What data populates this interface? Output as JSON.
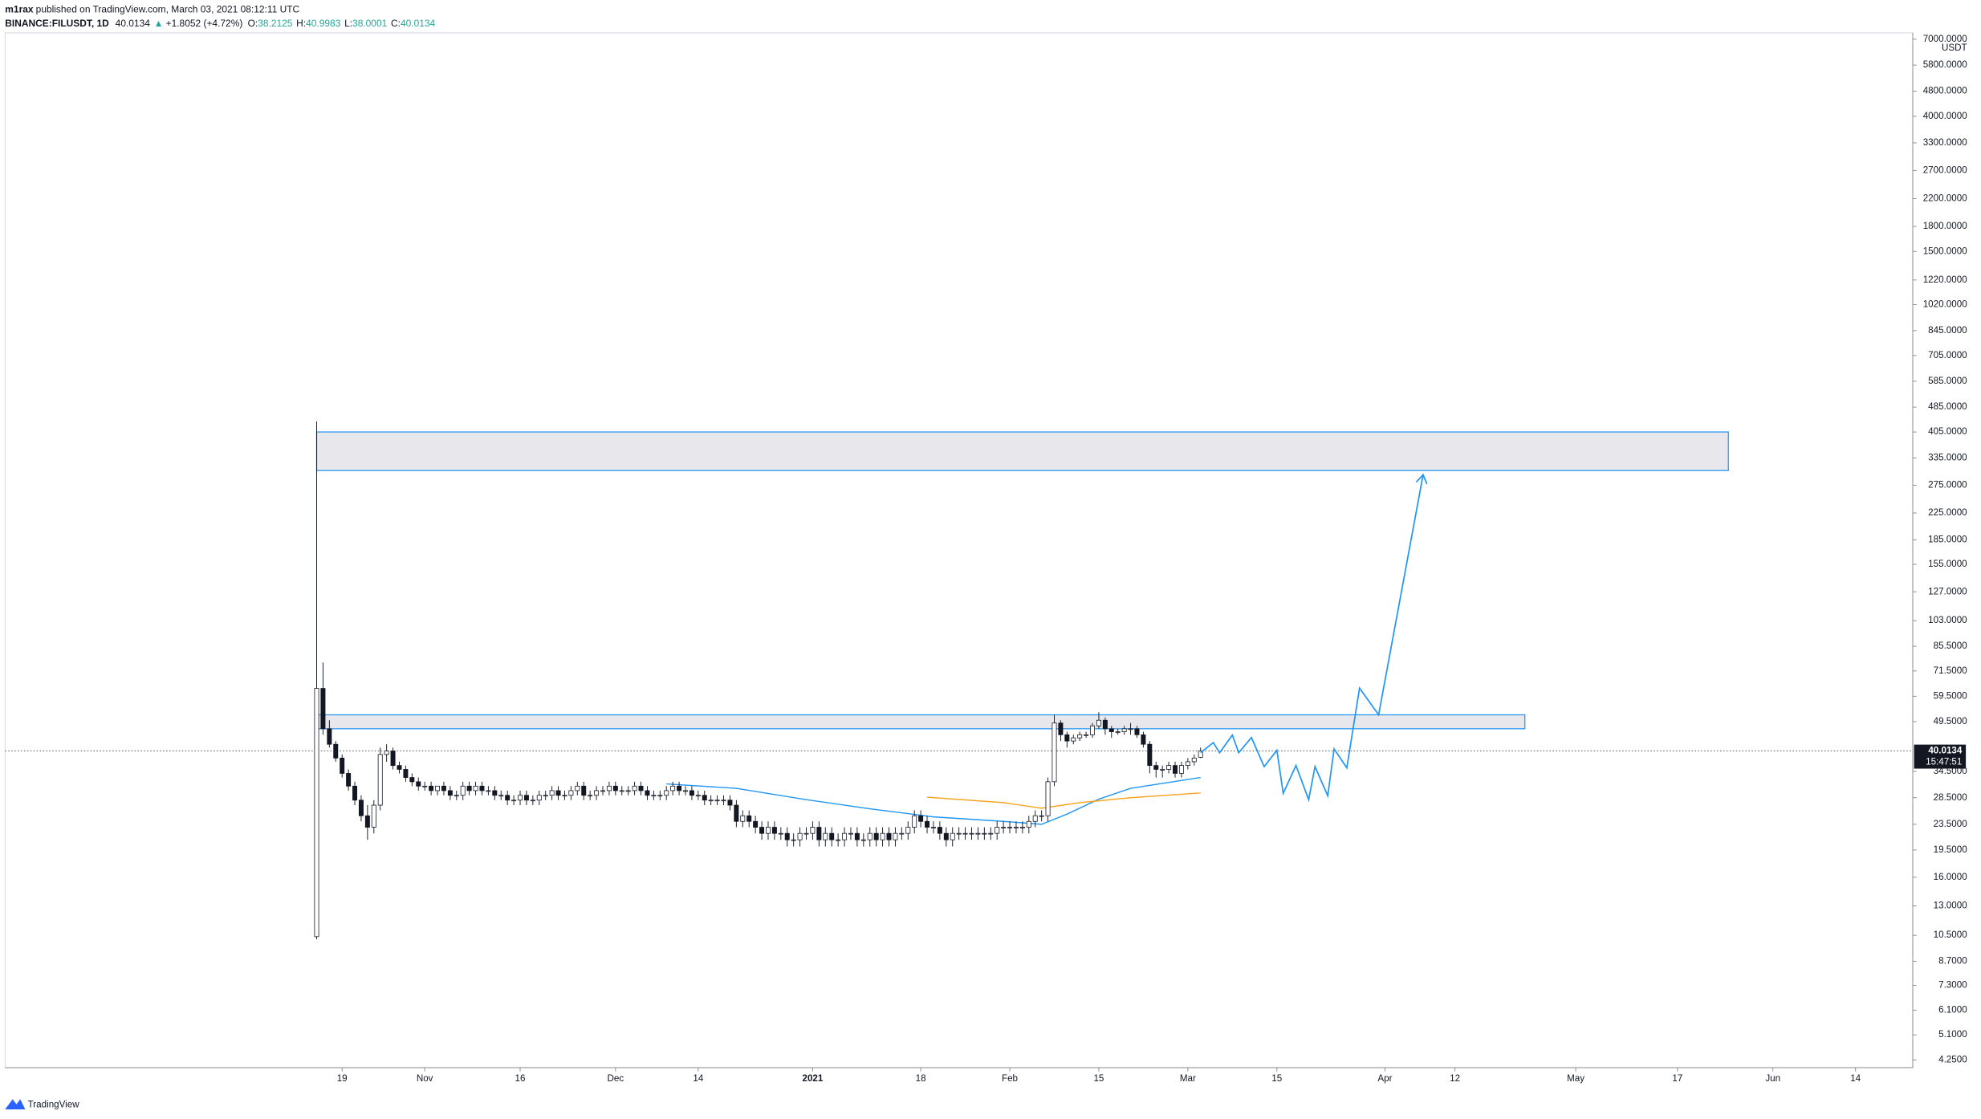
{
  "header": {
    "author": "m1rax",
    "published": "published on TradingView.com, March 03, 2021 08:12:11 UTC",
    "symbol": "BINANCE:FILUSDT, 1D",
    "price": "40.0134",
    "arrow": "▲",
    "change": "+1.8052 (+4.72%)",
    "ohlc": [
      {
        "label": "O:",
        "value": "38.2125"
      },
      {
        "label": "H:",
        "value": "40.9983"
      },
      {
        "label": "L:",
        "value": "38.0001"
      },
      {
        "label": "C:",
        "value": "40.0134"
      }
    ]
  },
  "chart_data": {
    "type": "candlestick",
    "log_scale": true,
    "grid": false,
    "currency": "USDT",
    "up_color": "#ffffff",
    "down_color": "#131722",
    "wick_color": "#131722",
    "xlim": [
      "2020-08-27",
      "2021-06-23"
    ],
    "xticks": [
      {
        "value": "2020-10-19",
        "label": "19"
      },
      {
        "value": "2020-11-01",
        "label": "Nov"
      },
      {
        "value": "2020-11-16",
        "label": "16"
      },
      {
        "value": "2020-12-01",
        "label": "Dec"
      },
      {
        "value": "2020-12-14",
        "label": "14"
      },
      {
        "value": "2021-01-01",
        "label": "2021"
      },
      {
        "value": "2021-01-18",
        "label": "18"
      },
      {
        "value": "2021-02-01",
        "label": "Feb"
      },
      {
        "value": "2021-02-15",
        "label": "15"
      },
      {
        "value": "2021-03-01",
        "label": "Mar"
      },
      {
        "value": "2021-03-15",
        "label": "15"
      },
      {
        "value": "2021-04-01",
        "label": "Apr"
      },
      {
        "value": "2021-04-12",
        "label": "12"
      },
      {
        "value": "2021-05-01",
        "label": "May"
      },
      {
        "value": "2021-05-17",
        "label": "17"
      },
      {
        "value": "2021-06-01",
        "label": "Jun"
      },
      {
        "value": "2021-06-14",
        "label": "14"
      }
    ],
    "ylim": [
      4.02,
      7330
    ],
    "yticks": [
      {
        "value": 7000,
        "label": "7000.0000"
      },
      {
        "value": 5800,
        "label": "5800.0000"
      },
      {
        "value": 4800,
        "label": "4800.0000"
      },
      {
        "value": 4000,
        "label": "4000.0000"
      },
      {
        "value": 3300,
        "label": "3300.0000"
      },
      {
        "value": 2700,
        "label": "2700.0000"
      },
      {
        "value": 2200,
        "label": "2200.0000"
      },
      {
        "value": 1800,
        "label": "1800.0000"
      },
      {
        "value": 1500,
        "label": "1500.0000"
      },
      {
        "value": 1220,
        "label": "1220.0000"
      },
      {
        "value": 1020,
        "label": "1020.0000"
      },
      {
        "value": 845,
        "label": "845.0000"
      },
      {
        "value": 705,
        "label": "705.0000"
      },
      {
        "value": 585,
        "label": "585.0000"
      },
      {
        "value": 485,
        "label": "485.0000"
      },
      {
        "value": 405,
        "label": "405.0000"
      },
      {
        "value": 335,
        "label": "335.0000"
      },
      {
        "value": 275,
        "label": "275.0000"
      },
      {
        "value": 225,
        "label": "225.0000"
      },
      {
        "value": 185,
        "label": "185.0000"
      },
      {
        "value": 155,
        "label": "155.0000"
      },
      {
        "value": 127,
        "label": "127.0000"
      },
      {
        "value": 103,
        "label": "103.0000"
      },
      {
        "value": 85.5,
        "label": "85.5000"
      },
      {
        "value": 71.5,
        "label": "71.5000"
      },
      {
        "value": 59.5,
        "label": "59.5000"
      },
      {
        "value": 49.5,
        "label": "49.5000"
      },
      {
        "value": 34.5,
        "label": "34.5000"
      },
      {
        "value": 28.5,
        "label": "28.5000"
      },
      {
        "value": 23.5,
        "label": "23.5000"
      },
      {
        "value": 19.5,
        "label": "19.5000"
      },
      {
        "value": 16,
        "label": "16.0000"
      },
      {
        "value": 13,
        "label": "13.0000"
      },
      {
        "value": 10.5,
        "label": "10.5000"
      },
      {
        "value": 8.7,
        "label": "8.7000"
      },
      {
        "value": 7.3,
        "label": "7.3000"
      },
      {
        "value": 6.1,
        "label": "6.1000"
      },
      {
        "value": 5.1,
        "label": "5.1000"
      },
      {
        "value": 4.25,
        "label": "4.2500"
      }
    ],
    "last_price": {
      "value": 40.0134,
      "label": "40.0134",
      "countdown": "15:47:51",
      "color": "#131722"
    },
    "x": [
      "2020-10-15",
      "2020-10-16",
      "2020-10-17",
      "2020-10-18",
      "2020-10-19",
      "2020-10-20",
      "2020-10-21",
      "2020-10-22",
      "2020-10-23",
      "2020-10-24",
      "2020-10-25",
      "2020-10-26",
      "2020-10-27",
      "2020-10-28",
      "2020-10-29",
      "2020-10-30",
      "2020-10-31",
      "2020-11-01",
      "2020-11-02",
      "2020-11-03",
      "2020-11-04",
      "2020-11-05",
      "2020-11-06",
      "2020-11-07",
      "2020-11-08",
      "2020-11-09",
      "2020-11-10",
      "2020-11-11",
      "2020-11-12",
      "2020-11-13",
      "2020-11-14",
      "2020-11-15",
      "2020-11-16",
      "2020-11-17",
      "2020-11-18",
      "2020-11-19",
      "2020-11-20",
      "2020-11-21",
      "2020-11-22",
      "2020-11-23",
      "2020-11-24",
      "2020-11-25",
      "2020-11-26",
      "2020-11-27",
      "2020-11-28",
      "2020-11-29",
      "2020-11-30",
      "2020-12-01",
      "2020-12-02",
      "2020-12-03",
      "2020-12-04",
      "2020-12-05",
      "2020-12-06",
      "2020-12-07",
      "2020-12-08",
      "2020-12-09",
      "2020-12-10",
      "2020-12-11",
      "2020-12-12",
      "2020-12-13",
      "2020-12-14",
      "2020-12-15",
      "2020-12-16",
      "2020-12-17",
      "2020-12-18",
      "2020-12-19",
      "2020-12-20",
      "2020-12-21",
      "2020-12-22",
      "2020-12-23",
      "2020-12-24",
      "2020-12-25",
      "2020-12-26",
      "2020-12-27",
      "2020-12-28",
      "2020-12-29",
      "2020-12-30",
      "2020-12-31",
      "2021-01-01",
      "2021-01-02",
      "2021-01-03",
      "2021-01-04",
      "2021-01-05",
      "2021-01-06",
      "2021-01-07",
      "2021-01-08",
      "2021-01-09",
      "2021-01-10",
      "2021-01-11",
      "2021-01-12",
      "2021-01-13",
      "2021-01-14",
      "2021-01-15",
      "2021-01-16",
      "2021-01-17",
      "2021-01-18",
      "2021-01-19",
      "2021-01-20",
      "2021-01-21",
      "2021-01-22",
      "2021-01-23",
      "2021-01-24",
      "2021-01-25",
      "2021-01-26",
      "2021-01-27",
      "2021-01-28",
      "2021-01-29",
      "2021-01-30",
      "2021-01-31",
      "2021-02-01",
      "2021-02-02",
      "2021-02-03",
      "2021-02-04",
      "2021-02-05",
      "2021-02-06",
      "2021-02-07",
      "2021-02-08",
      "2021-02-09",
      "2021-02-10",
      "2021-02-11",
      "2021-02-12",
      "2021-02-13",
      "2021-02-14",
      "2021-02-15",
      "2021-02-16",
      "2021-02-17",
      "2021-02-18",
      "2021-02-19",
      "2021-02-20",
      "2021-02-21",
      "2021-02-22",
      "2021-02-23",
      "2021-02-24",
      "2021-02-25",
      "2021-02-26",
      "2021-02-27",
      "2021-02-28",
      "2021-03-01",
      "2021-03-02",
      "2021-03-03"
    ],
    "open": [
      10.4,
      63,
      47,
      42,
      38,
      34,
      31,
      28,
      25,
      23,
      27,
      39,
      40,
      36,
      35,
      33,
      32,
      31,
      31,
      30,
      31,
      30,
      29,
      29,
      31,
      30,
      31,
      30,
      30,
      29,
      29,
      28,
      28,
      29,
      28,
      28,
      29,
      29,
      30,
      29,
      29,
      30,
      31,
      29,
      29,
      30,
      30,
      31,
      30,
      30,
      30,
      31,
      30,
      29,
      29,
      29,
      30,
      31,
      30,
      30,
      29,
      29,
      28,
      28,
      28,
      28,
      27,
      24,
      25,
      24,
      23,
      22,
      23,
      22,
      22,
      21,
      21,
      22,
      22,
      23,
      21,
      22,
      21,
      21,
      22,
      22,
      21,
      21,
      22,
      21,
      22,
      21,
      22,
      22,
      23,
      25,
      24,
      23,
      23,
      22,
      21,
      22,
      22,
      22,
      22,
      22,
      22,
      22,
      23,
      23,
      23,
      23,
      23,
      24,
      25,
      25,
      32,
      49,
      45,
      43,
      44,
      45,
      45,
      48,
      50,
      47,
      46,
      46,
      47,
      47,
      45,
      42,
      36,
      35,
      35,
      36,
      34,
      36,
      37,
      38.2125
    ],
    "high": [
      437,
      76,
      50,
      43,
      39,
      35,
      32,
      29,
      27,
      28,
      41,
      42,
      41,
      37,
      36,
      34,
      33,
      32,
      32,
      31,
      32,
      31,
      30,
      32,
      32,
      32,
      32,
      31,
      31,
      30,
      30,
      29,
      30,
      30,
      29,
      30,
      30,
      31,
      31,
      30,
      31,
      32,
      32,
      30,
      31,
      31,
      32,
      32,
      31,
      31,
      32,
      32,
      31,
      30,
      30,
      31,
      32,
      32,
      31,
      31,
      30,
      30,
      29,
      29,
      29,
      29,
      28,
      26,
      26,
      25,
      24,
      24,
      24,
      23,
      23,
      22,
      23,
      23,
      24,
      24,
      23,
      23,
      22,
      23,
      23,
      23,
      22,
      23,
      23,
      23,
      23,
      23,
      23,
      24,
      26,
      26,
      25,
      24,
      24,
      23,
      23,
      23,
      23,
      23,
      23,
      23,
      23,
      24,
      24,
      24,
      24,
      24,
      25,
      26,
      26,
      33,
      52,
      50,
      46,
      45,
      46,
      46,
      49,
      53,
      51,
      48,
      47,
      48,
      49,
      48,
      46,
      43,
      37,
      36,
      37,
      37,
      37,
      38,
      39,
      40.9983
    ],
    "low": [
      10.2,
      45,
      41,
      37,
      33,
      30,
      27,
      24,
      21,
      22,
      26,
      37,
      35,
      34,
      32,
      31,
      30,
      30,
      29,
      29,
      29,
      28,
      28,
      28,
      29,
      29,
      29,
      29,
      28,
      28,
      27,
      27,
      27,
      27,
      27,
      27,
      28,
      28,
      28,
      28,
      28,
      29,
      28,
      28,
      28,
      29,
      29,
      29,
      29,
      29,
      29,
      29,
      28,
      28,
      28,
      28,
      29,
      29,
      29,
      28,
      28,
      27,
      27,
      27,
      27,
      26,
      23,
      23,
      23,
      22,
      21,
      21,
      21,
      21,
      20,
      20,
      20,
      21,
      21,
      20,
      20,
      20,
      20,
      20,
      21,
      20,
      20,
      20,
      20,
      20,
      20,
      20,
      21,
      21,
      22,
      23,
      22,
      22,
      21,
      20,
      20,
      21,
      21,
      21,
      21,
      21,
      21,
      21,
      22,
      22,
      22,
      22,
      22,
      23,
      24,
      24,
      31,
      43,
      41,
      42,
      43,
      44,
      44,
      47,
      45,
      44,
      45,
      45,
      45,
      44,
      41,
      34,
      33,
      33,
      34,
      33,
      33,
      35,
      36,
      38.0001
    ],
    "close": [
      63,
      47,
      42,
      38,
      34,
      31,
      28,
      25,
      23,
      27,
      39,
      40,
      36,
      35,
      33,
      32,
      31,
      31,
      30,
      31,
      30,
      29,
      29,
      31,
      30,
      31,
      30,
      30,
      29,
      29,
      28,
      28,
      29,
      28,
      28,
      29,
      29,
      30,
      29,
      29,
      30,
      31,
      29,
      29,
      30,
      30,
      31,
      30,
      30,
      30,
      31,
      30,
      29,
      29,
      29,
      30,
      31,
      30,
      30,
      29,
      29,
      28,
      28,
      28,
      28,
      27,
      24,
      25,
      24,
      23,
      22,
      23,
      22,
      22,
      21,
      21,
      22,
      22,
      23,
      21,
      22,
      21,
      21,
      22,
      22,
      21,
      21,
      22,
      21,
      22,
      21,
      22,
      22,
      23,
      25,
      24,
      23,
      23,
      22,
      21,
      22,
      22,
      22,
      22,
      22,
      22,
      22,
      23,
      23,
      23,
      23,
      23,
      24,
      25,
      25,
      32,
      49,
      45,
      43,
      44,
      45,
      45,
      48,
      50,
      47,
      46,
      46,
      47,
      47,
      45,
      42,
      36,
      35,
      35,
      36,
      34,
      36,
      37,
      38,
      40.0134
    ],
    "series": [
      {
        "color": "#2196f3",
        "x": [
          "2020-12-09",
          "2020-12-20",
          "2020-12-31",
          "2021-01-10",
          "2021-01-20",
          "2021-01-31",
          "2021-02-06",
          "2021-02-10",
          "2021-02-15",
          "2021-02-20",
          "2021-03-03"
        ],
        "values": [
          31.5,
          30.5,
          28.1,
          26.3,
          24.8,
          24,
          23.5,
          25.3,
          28.2,
          30.5,
          33
        ]
      },
      {
        "color": "#f5a623",
        "x": [
          "2021-01-19",
          "2021-01-31",
          "2021-02-06",
          "2021-02-12",
          "2021-02-20",
          "2021-03-03"
        ],
        "values": [
          28.6,
          27.5,
          26.4,
          27.5,
          28.5,
          29.5
        ]
      }
    ],
    "zones": [
      {
        "from": "2020-10-15",
        "to": "2021-05-25",
        "low": 306,
        "high": 405,
        "color": "#2196f3"
      },
      {
        "from": "2020-10-15",
        "to": "2021-04-23",
        "low": 47,
        "high": 52,
        "color": "#2196f3"
      }
    ],
    "projection": {
      "color": "#2196f3",
      "x": [
        "2021-03-03",
        "2021-03-05",
        "2021-03-06",
        "2021-03-08",
        "2021-03-09",
        "2021-03-11",
        "2021-03-13",
        "2021-03-15",
        "2021-03-16",
        "2021-03-18",
        "2021-03-20",
        "2021-03-21",
        "2021-03-23",
        "2021-03-24",
        "2021-03-26",
        "2021-03-28",
        "2021-03-31",
        "2021-04-07"
      ],
      "values": [
        39.5,
        42.5,
        39.5,
        44.9,
        39.5,
        44.1,
        35.7,
        40.2,
        29.4,
        36,
        28.1,
        35.7,
        28.9,
        40.6,
        35.4,
        63.1,
        52,
        297
      ]
    }
  },
  "footer": {
    "brand": "TradingView"
  }
}
